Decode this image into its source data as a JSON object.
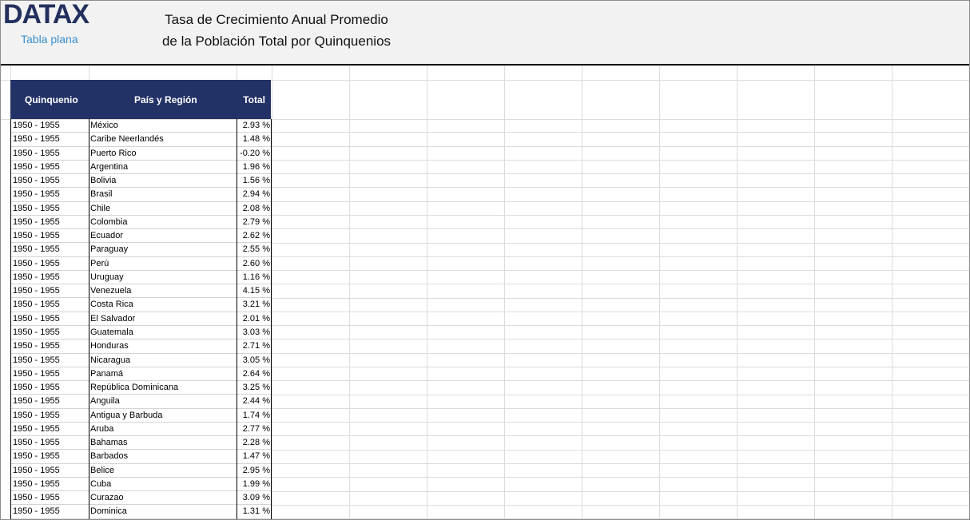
{
  "header": {
    "logo": "DATAX",
    "subtitle": "Tabla plana",
    "title_line1": "Tasa de Crecimiento Anual Promedio",
    "title_line2": "de la Población Total por Quinquenios"
  },
  "table": {
    "columns": [
      "Quinquenio",
      "País y Región",
      "Total"
    ],
    "rows": [
      [
        "1950 - 1955",
        "México",
        "2.93 %"
      ],
      [
        "1950 - 1955",
        "Caribe Neerlandés",
        "1.48 %"
      ],
      [
        "1950 - 1955",
        "Puerto Rico",
        "-0.20 %"
      ],
      [
        "1950 - 1955",
        "Argentina",
        "1.96 %"
      ],
      [
        "1950 - 1955",
        "Bolivia",
        "1.56 %"
      ],
      [
        "1950 - 1955",
        "Brasil",
        "2.94 %"
      ],
      [
        "1950 - 1955",
        "Chile",
        "2.08 %"
      ],
      [
        "1950 - 1955",
        "Colombia",
        "2.79 %"
      ],
      [
        "1950 - 1955",
        "Ecuador",
        "2.62 %"
      ],
      [
        "1950 - 1955",
        "Paraguay",
        "2.55 %"
      ],
      [
        "1950 - 1955",
        "Perú",
        "2.60 %"
      ],
      [
        "1950 - 1955",
        "Uruguay",
        "1.16 %"
      ],
      [
        "1950 - 1955",
        "Venezuela",
        "4.15 %"
      ],
      [
        "1950 - 1955",
        "Costa Rica",
        "3.21 %"
      ],
      [
        "1950 - 1955",
        "El Salvador",
        "2.01 %"
      ],
      [
        "1950 - 1955",
        "Guatemala",
        "3.03 %"
      ],
      [
        "1950 - 1955",
        "Honduras",
        "2.71 %"
      ],
      [
        "1950 - 1955",
        "Nicaragua",
        "3.05 %"
      ],
      [
        "1950 - 1955",
        "Panamá",
        "2.64 %"
      ],
      [
        "1950 - 1955",
        "República Dominicana",
        "3.25 %"
      ],
      [
        "1950 - 1955",
        "Anguila",
        "2.44 %"
      ],
      [
        "1950 - 1955",
        "Antigua y Barbuda",
        "1.74 %"
      ],
      [
        "1950 - 1955",
        "Aruba",
        "2.77 %"
      ],
      [
        "1950 - 1955",
        "Bahamas",
        "2.28 %"
      ],
      [
        "1950 - 1955",
        "Barbados",
        "1.47 %"
      ],
      [
        "1950 - 1955",
        "Belice",
        "2.95 %"
      ],
      [
        "1950 - 1955",
        "Cuba",
        "1.99 %"
      ],
      [
        "1950 - 1955",
        "Curazao",
        "3.09 %"
      ],
      [
        "1950 - 1955",
        "Dominica",
        "1.31 %"
      ]
    ]
  }
}
